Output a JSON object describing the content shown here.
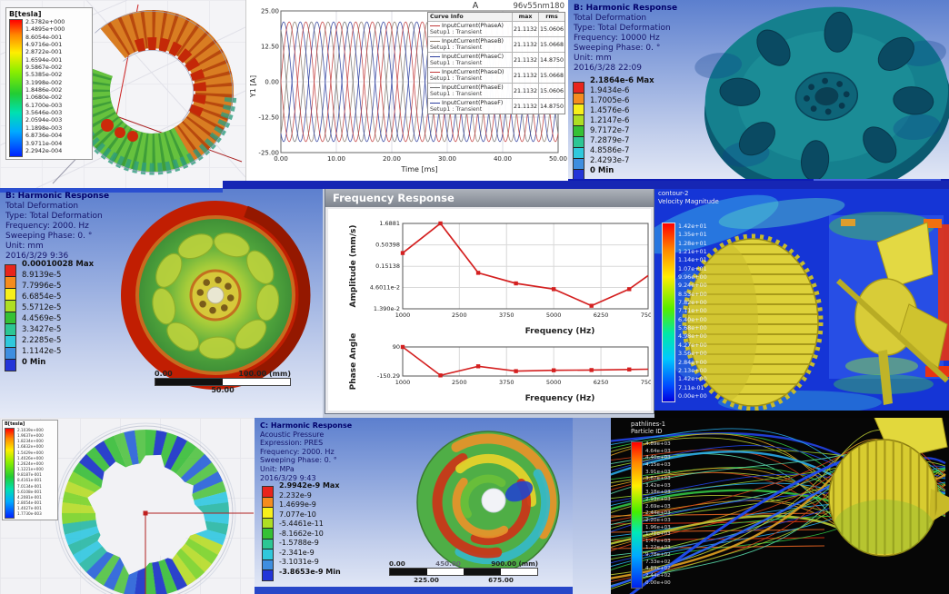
{
  "colors": {
    "ansys_bands": [
      "#e8241c",
      "#f58c1e",
      "#f7ef1a",
      "#aede23",
      "#35c135",
      "#2cc694",
      "#2fc8dc",
      "#3e8ee0",
      "#2234d8"
    ],
    "blue_bar": "#1626b4",
    "curve_red": "#c23a3a",
    "curve_grey": "#8a7a6a",
    "curve_blue": "#2c3e9e"
  },
  "p1": {
    "legend_title": "B[tesla]",
    "values": [
      "2.5782e+000",
      "1.4895e+000",
      "8.6054e-001",
      "4.9716e-001",
      "2.8722e-001",
      "1.6594e-001",
      "9.5867e-002",
      "5.5385e-002",
      "3.1998e-002",
      "1.8486e-002",
      "1.0680e-002",
      "6.1700e-003",
      "3.5646e-003",
      "2.0594e-003",
      "1.1898e-003",
      "6.8736e-004",
      "3.9711e-004",
      "2.2942e-004"
    ]
  },
  "p3": {
    "header": [
      "B: Harmonic Response",
      "Total Deformation",
      "Type: Total Deformation",
      "Frequency: 10000 Hz",
      "Sweeping Phase: 0. °",
      "Unit: mm",
      "2016/3/28 22:09"
    ],
    "legend": [
      "2.1864e-6 Max",
      "1.9434e-6",
      "1.7005e-6",
      "1.4576e-6",
      "1.2147e-6",
      "9.7172e-7",
      "7.2879e-7",
      "4.8586e-7",
      "2.4293e-7",
      "0 Min"
    ]
  },
  "p4": {
    "header": [
      "B: Harmonic Response",
      "Total Deformation",
      "Type: Total Deformation",
      "Frequency: 2000. Hz",
      "Sweeping Phase: 0. °",
      "Unit: mm",
      "2016/3/29 9:36"
    ],
    "legend": [
      "0.00010028 Max",
      "8.9139e-5",
      "7.7996e-5",
      "6.6854e-5",
      "5.5712e-5",
      "4.4569e-5",
      "3.3427e-5",
      "2.2285e-5",
      "1.1142e-5",
      "0 Min"
    ],
    "scalebar": {
      "l": "0.00",
      "r": "100.00 (mm)",
      "m": "50.00"
    }
  },
  "p5": {
    "window_title": "Frequency Response"
  },
  "p6": {
    "title1": "contour-2",
    "title2": "Velocity Magnitude",
    "legend": [
      "1.42e+01",
      "1.35e+01",
      "1.28e+01",
      "1.21e+01",
      "1.14e+01",
      "1.07e+01",
      "9.96e+00",
      "9.24e+00",
      "8.53e+00",
      "7.82e+00",
      "7.11e+00",
      "6.40e+00",
      "5.68e+00",
      "4.98e+00",
      "4.27e+00",
      "3.56e+00",
      "2.84e+00",
      "2.13e+00",
      "1.42e+00",
      "7.11e-01",
      "0.00e+00"
    ]
  },
  "p7": {
    "legend_title": "B[tesla]",
    "values": [
      "2.1039e+000",
      "1.9637e+000",
      "1.8234e+000",
      "1.6832e+000",
      "1.5429e+000",
      "1.4026e+000",
      "1.2624e+000",
      "1.1221e+000",
      "9.8187e-001",
      "8.4161e-001",
      "7.0134e-001",
      "5.6108e-001",
      "4.2081e-001",
      "2.8054e-001",
      "1.4027e-001",
      "1.7730e-003"
    ]
  },
  "p8": {
    "header": [
      "C: Harmonic Response",
      "Acoustic Pressure",
      "Expression: PRES",
      "Frequency: 2000. Hz",
      "Sweeping Phase: 0. °",
      "Unit: MPa",
      "2016/3/29 9:43"
    ],
    "legend": [
      "2.9942e-9 Max",
      "2.232e-9",
      "1.4699e-9",
      "7.077e-10",
      "-5.4461e-11",
      "-8.1662e-10",
      "-1.5788e-9",
      "-2.341e-9",
      "-3.1031e-9",
      "-3.8653e-9 Min"
    ],
    "scalebar": {
      "l": "0.00",
      "c": "450.00",
      "r": "900.00 (mm)",
      "m1": "225.00",
      "m2": "675.00"
    }
  },
  "p9": {
    "title1": "pathlines-1",
    "title2": "Particle ID",
    "legend": [
      "4.89e+03",
      "4.64e+03",
      "4.40e+03",
      "4.15e+03",
      "3.91e+03",
      "3.67e+03",
      "3.42e+03",
      "3.18e+03",
      "2.93e+03",
      "2.69e+03",
      "2.44e+03",
      "2.20e+03",
      "1.96e+03",
      "1.71e+03",
      "1.47e+03",
      "1.22e+03",
      "9.78e+02",
      "7.33e+02",
      "4.89e+02",
      "2.44e+02",
      "0.00e+00"
    ]
  },
  "chart_data": [
    {
      "id": "input-current-transient",
      "type": "line",
      "title": "A",
      "model_label": "96v55nm180",
      "xlabel": "Time [ms]",
      "ylabel": "Y1 [A]",
      "xlim": [
        0,
        50
      ],
      "ylim": [
        -25,
        25
      ],
      "xticks": [
        0,
        10,
        20,
        30,
        40,
        50
      ],
      "xtick_labels": [
        "0.00",
        "10.00",
        "20.00",
        "30.00",
        "40.00",
        "50.00"
      ],
      "yticks": [
        25,
        12.5,
        0,
        -12.5,
        -25
      ],
      "ytick_labels": [
        "25.00",
        "12.50",
        "0.00",
        "-12.50",
        "-25.00"
      ],
      "waveform": "sine",
      "amplitude": 21.1132,
      "period_ms": 6.0,
      "legend_header": {
        "curve": "Curve Info",
        "max": "max",
        "rms": "rms"
      },
      "series": [
        {
          "name": "InputCurrent(PhaseA)",
          "setup": "Setup1 : Transient",
          "phase_deg": 0,
          "color": "#c23a3a",
          "max": "21.1132",
          "rms": "15.0606"
        },
        {
          "name": "InputCurrent(PhaseB)",
          "setup": "Setup1 : Transient",
          "phase_deg": -60,
          "color": "#8a7a6a",
          "max": "21.1132",
          "rms": "15.0668"
        },
        {
          "name": "InputCurrent(PhaseC)",
          "setup": "Setup1 : Transient",
          "phase_deg": -120,
          "color": "#2c3e9e",
          "max": "21.1132",
          "rms": "14.8750"
        },
        {
          "name": "InputCurrent(PhaseD)",
          "setup": "Setup1 : Transient",
          "phase_deg": -180,
          "color": "#c23a3a",
          "max": "21.1132",
          "rms": "15.0668"
        },
        {
          "name": "InputCurrent(PhaseE)",
          "setup": "Setup1 : Transient",
          "phase_deg": -240,
          "color": "#6e6e6e",
          "max": "21.1132",
          "rms": "15.0606"
        },
        {
          "name": "InputCurrent(PhaseF)",
          "setup": "Setup1 : Transient",
          "phase_deg": -300,
          "color": "#2c3e9e",
          "max": "21.1132",
          "rms": "14.8750"
        }
      ]
    },
    {
      "id": "frequency-response-amplitude",
      "type": "line",
      "log_y": true,
      "x": [
        1000,
        2000,
        3000,
        4000,
        5000,
        6000,
        7000,
        7500
      ],
      "y": [
        0.32,
        1.6881,
        0.105,
        0.058,
        0.042,
        0.0165,
        0.042,
        0.09
      ],
      "marker": "square",
      "marker_points": 7,
      "color": "#d42020",
      "ylabel": "Amplitude (mm/s)",
      "xlabel": "Frequency (Hz)",
      "ylim": [
        0.0139,
        1.6881
      ],
      "yticks": [
        1.6881,
        0.50398,
        0.15138,
        0.046011,
        0.0139
      ],
      "ytick_labels": [
        "1.6881",
        "0.50398",
        "0.15138",
        "4.6011e-2",
        "1.390e-2"
      ],
      "xticks": [
        1000,
        2500,
        3750,
        5000,
        6250,
        7500
      ],
      "xtick_labels": [
        "1000",
        "2500",
        "3750",
        "5000",
        "6250",
        "7500"
      ]
    },
    {
      "id": "frequency-response-phase",
      "type": "line",
      "x": [
        1000,
        2000,
        3000,
        4000,
        5000,
        6000,
        7000,
        7500
      ],
      "y": [
        90,
        -145,
        -70,
        -110,
        -103,
        -101,
        -96,
        -94
      ],
      "marker": "square",
      "marker_points": 7,
      "color": "#d42020",
      "ylabel": "Phase Angle",
      "xlabel": "Frequency (Hz)",
      "ylim": [
        -150.29,
        90
      ],
      "yticks": [
        90,
        -150.29
      ],
      "ytick_labels": [
        "90",
        "-150.29"
      ],
      "xticks": [
        1000,
        2500,
        3750,
        5000,
        6250,
        7500
      ],
      "xtick_labels": [
        "1000",
        "2500",
        "3750",
        "5000",
        "6250",
        "7500"
      ]
    }
  ]
}
